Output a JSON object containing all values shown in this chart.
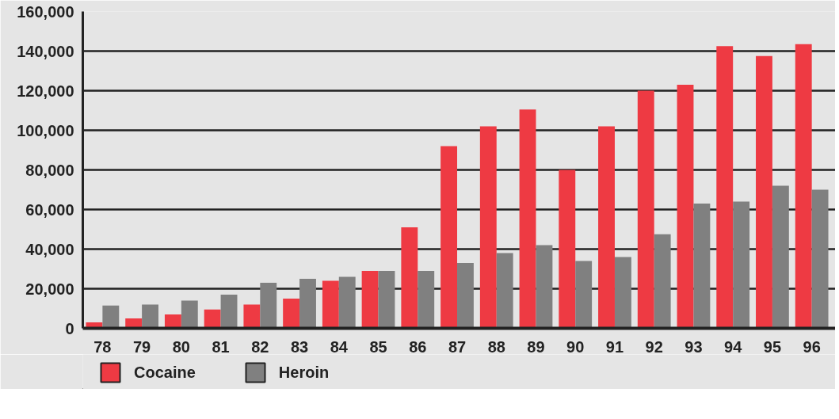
{
  "chart_data": {
    "type": "bar",
    "categories": [
      "78",
      "79",
      "80",
      "81",
      "82",
      "83",
      "84",
      "85",
      "86",
      "87",
      "88",
      "89",
      "90",
      "91",
      "92",
      "93",
      "94",
      "95",
      "96"
    ],
    "series": [
      {
        "name": "Cocaine",
        "color": "#ee3a43",
        "values": [
          3000,
          5000,
          7000,
          9500,
          12000,
          15000,
          24000,
          29000,
          51000,
          92000,
          102000,
          110500,
          80000,
          102000,
          120000,
          123000,
          142500,
          137500,
          143500
        ]
      },
      {
        "name": "Heroin",
        "color": "#808080",
        "values": [
          11500,
          12000,
          14000,
          17000,
          23000,
          25000,
          26000,
          29000,
          29000,
          33000,
          38000,
          42000,
          34000,
          36000,
          47500,
          63000,
          64000,
          72000,
          70000
        ]
      }
    ],
    "ylim": [
      0,
      160000
    ],
    "yticks": [
      0,
      {
        "value": 20000,
        "label": "20,000"
      },
      {
        "value": 40000,
        "label": "40,000"
      },
      {
        "value": 60000,
        "label": "60,000"
      },
      {
        "value": 80000,
        "label": "80,000"
      },
      {
        "value": 100000,
        "label": "100,000"
      },
      {
        "value": 120000,
        "label": "120,000"
      },
      {
        "value": 140000,
        "label": "140,000"
      },
      {
        "value": 160000,
        "label": "160,000"
      }
    ],
    "grid": "y",
    "legend": "bottom"
  }
}
